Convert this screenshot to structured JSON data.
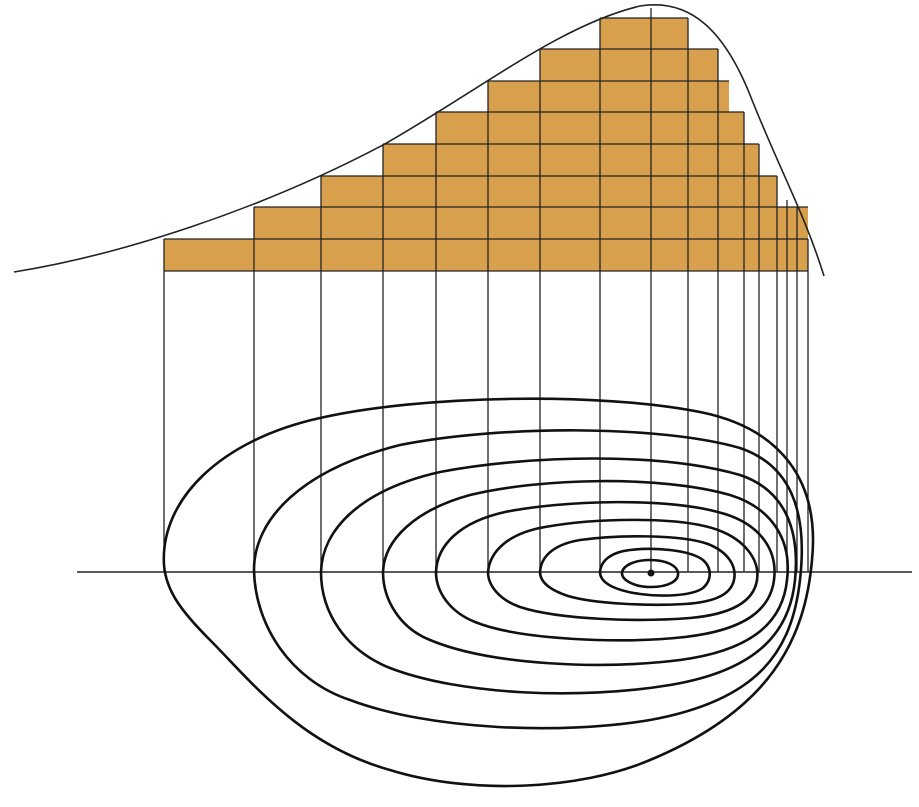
{
  "diagram": {
    "type": "topographic-profile-construction",
    "contour_count": 9,
    "profile_cells_per_column": [
      1,
      2,
      3,
      4,
      5,
      6,
      7,
      8,
      8,
      7,
      6,
      5,
      4,
      3,
      2,
      1
    ],
    "colors": {
      "background": "#ffffff",
      "profile_fill": "#d8a04d",
      "lines": "#222222"
    }
  }
}
